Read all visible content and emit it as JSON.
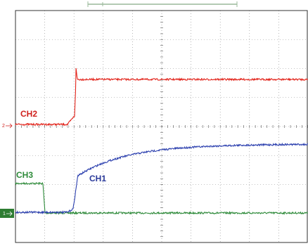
{
  "channels": {
    "ch2": "CH2",
    "ch3": "CH3",
    "ch1": "CH1"
  },
  "markers": {
    "ch2": "2",
    "ch1": "1"
  }
}
